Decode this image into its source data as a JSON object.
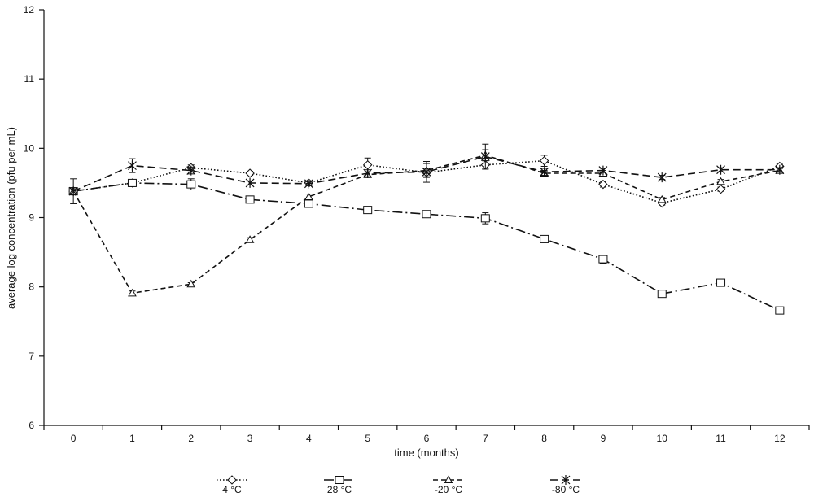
{
  "chart_data": {
    "type": "line",
    "title": "",
    "xlabel": "time (months)",
    "ylabel": "average log concentration (pfu per mL)",
    "x": [
      0,
      1,
      2,
      3,
      4,
      5,
      6,
      7,
      8,
      9,
      10,
      11,
      12
    ],
    "xlim": [
      -0.5,
      12.5
    ],
    "ylim": [
      6,
      12
    ],
    "yticks": [
      6,
      7,
      8,
      9,
      10,
      11,
      12
    ],
    "xticks": [
      0,
      1,
      2,
      3,
      4,
      5,
      6,
      7,
      8,
      9,
      10,
      11,
      12
    ],
    "grid": false,
    "legend_position": "bottom",
    "series": [
      {
        "name": "4 °C",
        "marker": "diamond",
        "dash": "dotted",
        "values": [
          9.38,
          9.5,
          9.72,
          9.64,
          9.5,
          9.76,
          9.65,
          9.76,
          9.82,
          9.48,
          9.21,
          9.41,
          9.74
        ],
        "errors": [
          0.05,
          0.05,
          0.04,
          0.03,
          0.03,
          0.1,
          0.06,
          0.06,
          0.08,
          0.04,
          0.03,
          0.03,
          0.03
        ]
      },
      {
        "name": "28 °C",
        "marker": "square",
        "dash": "dashdot",
        "values": [
          9.38,
          9.5,
          9.48,
          9.26,
          9.2,
          9.11,
          9.05,
          8.99,
          8.69,
          8.4,
          7.9,
          8.06,
          7.66
        ],
        "errors": [
          0.05,
          0.04,
          0.08,
          0.04,
          0.03,
          0.03,
          0.02,
          0.08,
          0.03,
          0.06,
          0.03,
          0.03,
          0.03
        ]
      },
      {
        "name": "-20 °C",
        "marker": "triangle",
        "dash": "dashed",
        "values": [
          9.38,
          7.91,
          8.04,
          8.68,
          9.3,
          9.62,
          9.68,
          9.9,
          9.64,
          9.64,
          9.26,
          9.52,
          9.68
        ],
        "errors": [
          0.05,
          0.03,
          0.02,
          0.03,
          0.04,
          0.04,
          0.1,
          0.08,
          0.04,
          0.04,
          0.03,
          0.03,
          0.03
        ]
      },
      {
        "name": "-80 °C",
        "marker": "star",
        "dash": "longdash",
        "values": [
          9.38,
          9.75,
          9.68,
          9.5,
          9.49,
          9.64,
          9.66,
          9.88,
          9.66,
          9.68,
          9.58,
          9.69,
          9.69
        ],
        "errors": [
          0.18,
          0.1,
          0.05,
          0.03,
          0.03,
          0.05,
          0.15,
          0.18,
          0.05,
          0.03,
          0.03,
          0.03,
          0.03
        ]
      }
    ]
  }
}
